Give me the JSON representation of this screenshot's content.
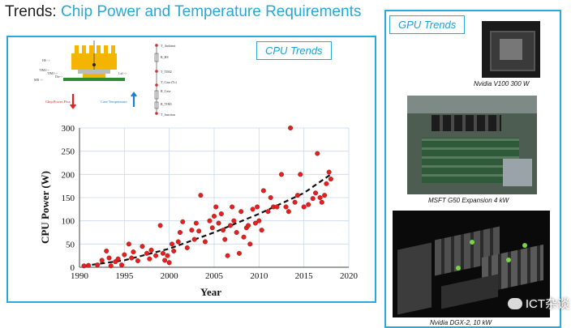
{
  "slide": {
    "title_prefix": "Trends: ",
    "title_accent": "Chip Power and Temperature Requirements"
  },
  "cpu_panel": {
    "label": "CPU Trends",
    "legend": {
      "chip_power": "Chip Power Flux",
      "case_temperature": "Case Temperature"
    },
    "diagram_labels": [
      "T_Ambient",
      "R_HS",
      "T_TIM2",
      "T_Case (Tc)",
      "R_Case",
      "R_TIM1",
      "T_Junction",
      "HS ->",
      "TIM2->",
      "TIM1->",
      "Die->",
      "MB ->",
      "Lid ->"
    ]
  },
  "chart_data": {
    "type": "scatter",
    "xlabel": "Year",
    "ylabel": "CPU Power (W)",
    "xlim": [
      1990,
      2020
    ],
    "ylim": [
      0,
      300
    ],
    "xticks": [
      1990,
      1995,
      2000,
      2005,
      2010,
      2015,
      2020
    ],
    "yticks": [
      0,
      50,
      100,
      150,
      200,
      250,
      300
    ],
    "grid": true,
    "marker_color": "#e32020",
    "trend_color": "#111111",
    "points": [
      [
        1990.5,
        3
      ],
      [
        1991,
        4
      ],
      [
        1992,
        5
      ],
      [
        1992.5,
        15
      ],
      [
        1993,
        35
      ],
      [
        1993.3,
        20
      ],
      [
        1993.5,
        3
      ],
      [
        1994,
        12
      ],
      [
        1994.3,
        18
      ],
      [
        1994.7,
        5
      ],
      [
        1995,
        27
      ],
      [
        1995.5,
        50
      ],
      [
        1995.8,
        20
      ],
      [
        1996,
        33
      ],
      [
        1996.5,
        14
      ],
      [
        1997,
        45
      ],
      [
        1997.5,
        30
      ],
      [
        1997.8,
        18
      ],
      [
        1998,
        37
      ],
      [
        1998.5,
        25
      ],
      [
        1999,
        90
      ],
      [
        1999.3,
        30
      ],
      [
        1999.5,
        15
      ],
      [
        1999.8,
        25
      ],
      [
        2000,
        10
      ],
      [
        2000.3,
        50
      ],
      [
        2000.5,
        35
      ],
      [
        2001,
        55
      ],
      [
        2001.2,
        75
      ],
      [
        2001.5,
        98
      ],
      [
        2002,
        42
      ],
      [
        2002.5,
        80
      ],
      [
        2002.8,
        60
      ],
      [
        2003,
        95
      ],
      [
        2003.3,
        78
      ],
      [
        2003.5,
        155
      ],
      [
        2004,
        55
      ],
      [
        2004.5,
        100
      ],
      [
        2004.8,
        85
      ],
      [
        2005,
        110
      ],
      [
        2005.2,
        130
      ],
      [
        2005.5,
        95
      ],
      [
        2005.8,
        115
      ],
      [
        2006,
        80
      ],
      [
        2006.2,
        60
      ],
      [
        2006.5,
        25
      ],
      [
        2006.8,
        90
      ],
      [
        2007,
        130
      ],
      [
        2007.2,
        100
      ],
      [
        2007.5,
        75
      ],
      [
        2007.8,
        30
      ],
      [
        2008,
        120
      ],
      [
        2008.3,
        65
      ],
      [
        2008.6,
        85
      ],
      [
        2008.8,
        90
      ],
      [
        2009,
        50
      ],
      [
        2009.3,
        125
      ],
      [
        2009.6,
        95
      ],
      [
        2009.8,
        130
      ],
      [
        2010,
        100
      ],
      [
        2010.3,
        80
      ],
      [
        2010.5,
        165
      ],
      [
        2011,
        120
      ],
      [
        2011.3,
        150
      ],
      [
        2011.6,
        130
      ],
      [
        2012,
        130
      ],
      [
        2012.5,
        200
      ],
      [
        2013,
        130
      ],
      [
        2013.3,
        120
      ],
      [
        2013.5,
        300
      ],
      [
        2014,
        140
      ],
      [
        2014.3,
        155
      ],
      [
        2014.6,
        200
      ],
      [
        2015,
        130
      ],
      [
        2015.5,
        135
      ],
      [
        2016,
        148
      ],
      [
        2016.3,
        160
      ],
      [
        2016.5,
        245
      ],
      [
        2016.8,
        150
      ],
      [
        2017,
        140
      ],
      [
        2017.3,
        155
      ],
      [
        2017.5,
        180
      ],
      [
        2017.8,
        205
      ],
      [
        2018,
        190
      ]
    ],
    "trend": [
      [
        1990.5,
        3
      ],
      [
        1995,
        15
      ],
      [
        2000,
        40
      ],
      [
        2005,
        75
      ],
      [
        2010,
        115
      ],
      [
        2015,
        160
      ],
      [
        2018,
        200
      ]
    ]
  },
  "gpu_panel": {
    "label": "GPU Trends",
    "items": [
      {
        "caption": "Nvidia V100 300 W",
        "icon": "gpu-chip-photo"
      },
      {
        "caption": "MSFT G50 Expansion 4 kW",
        "icon": "server-chassis-photo"
      },
      {
        "caption": "Nvidia DGX-2, 10 kW",
        "icon": "dgx-system-photo"
      }
    ]
  },
  "watermark": {
    "text": "ICT杂谈",
    "icon": "wechat-icon"
  }
}
